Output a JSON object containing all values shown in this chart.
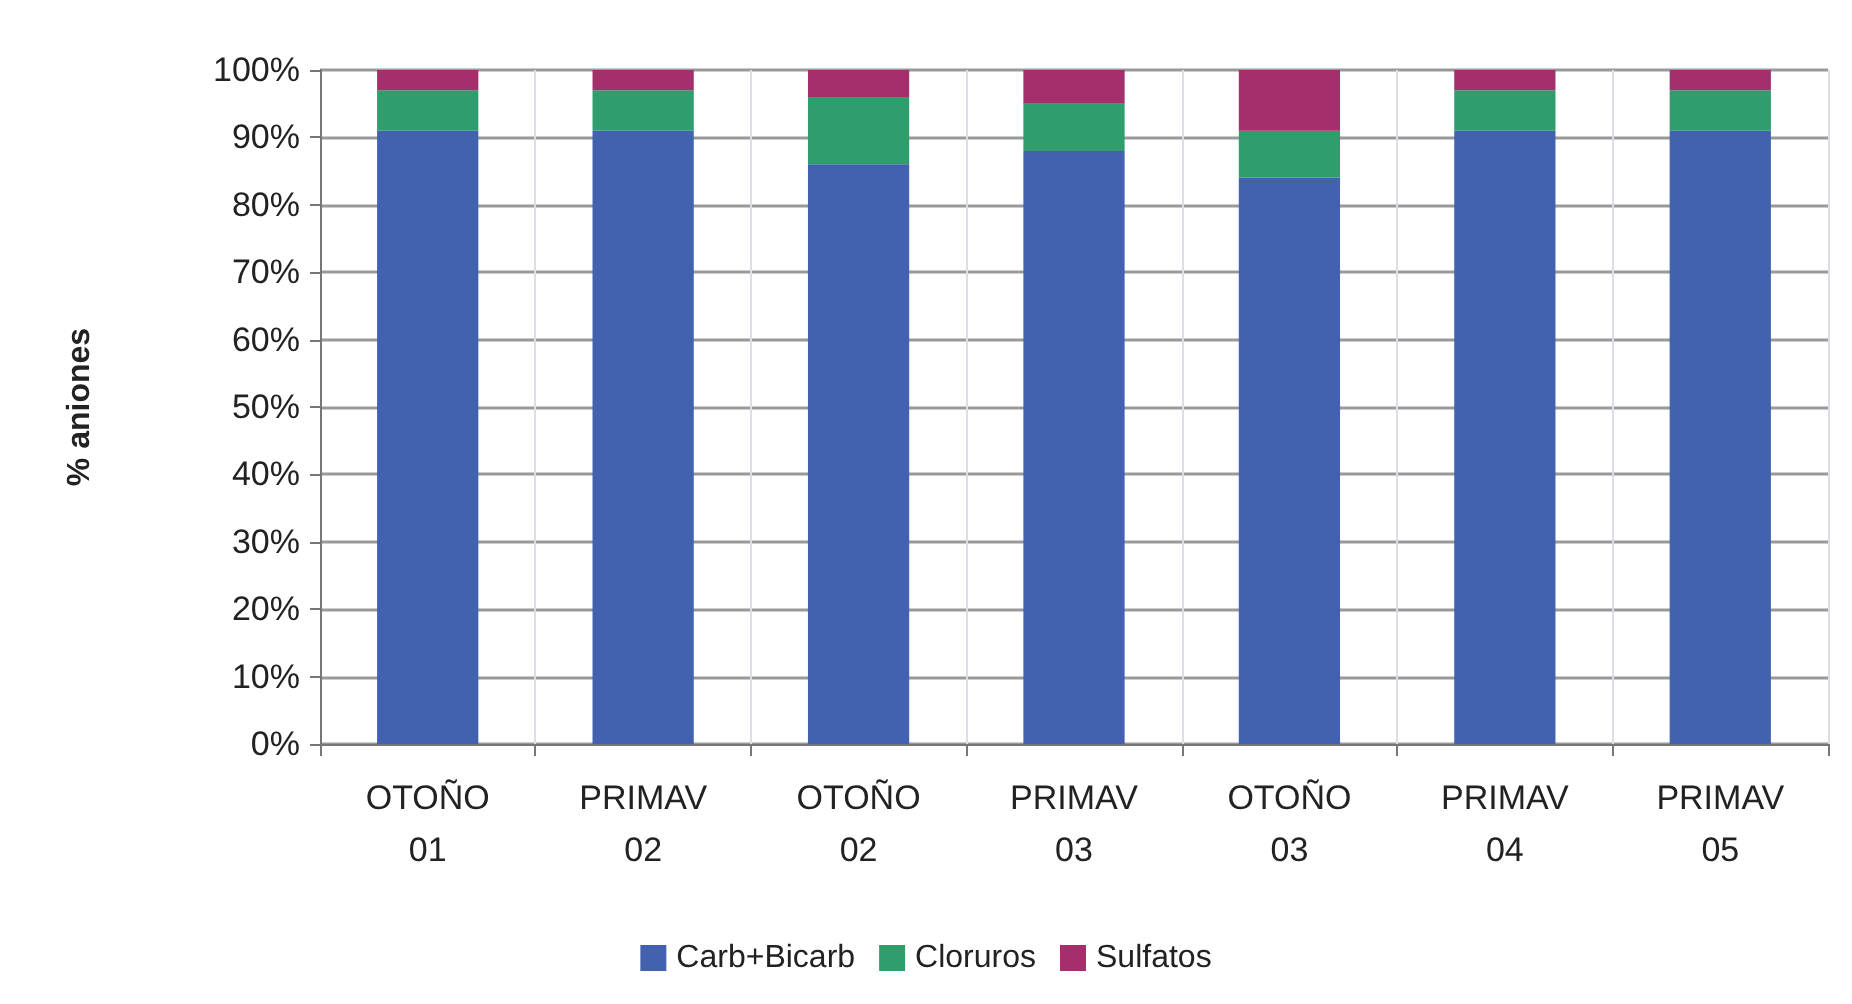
{
  "chart_data": {
    "type": "bar",
    "stacked": true,
    "ylabel": "% aniones",
    "categories": [
      "OTOÑO\n01",
      "PRIMAV\n02",
      "OTOÑO\n02",
      "PRIMAV\n03",
      "OTOÑO\n03",
      "PRIMAV\n04",
      "PRIMAV\n05"
    ],
    "series": [
      {
        "name": "Carb+Bicarb",
        "color": "#4262b0",
        "values": [
          91,
          91,
          86,
          88,
          84,
          91,
          91
        ]
      },
      {
        "name": "Cloruros",
        "color": "#2f9e6c",
        "values": [
          6,
          6,
          10,
          7,
          7,
          6,
          6
        ]
      },
      {
        "name": "Sulfatos",
        "color": "#a3306c",
        "values": [
          3,
          3,
          4,
          5,
          9,
          3,
          3
        ]
      }
    ],
    "ylim": [
      0,
      100
    ],
    "yticks": [
      {
        "value": 0,
        "label": "0%"
      },
      {
        "value": 10,
        "label": "10%"
      },
      {
        "value": 20,
        "label": "20%"
      },
      {
        "value": 30,
        "label": "30%"
      },
      {
        "value": 40,
        "label": "40%"
      },
      {
        "value": 50,
        "label": "50%"
      },
      {
        "value": 60,
        "label": "60%"
      },
      {
        "value": 70,
        "label": "70%"
      },
      {
        "value": 80,
        "label": "80%"
      },
      {
        "value": 90,
        "label": "90%"
      },
      {
        "value": 100,
        "label": "100%"
      }
    ],
    "grid": true,
    "legend": "bottom"
  }
}
